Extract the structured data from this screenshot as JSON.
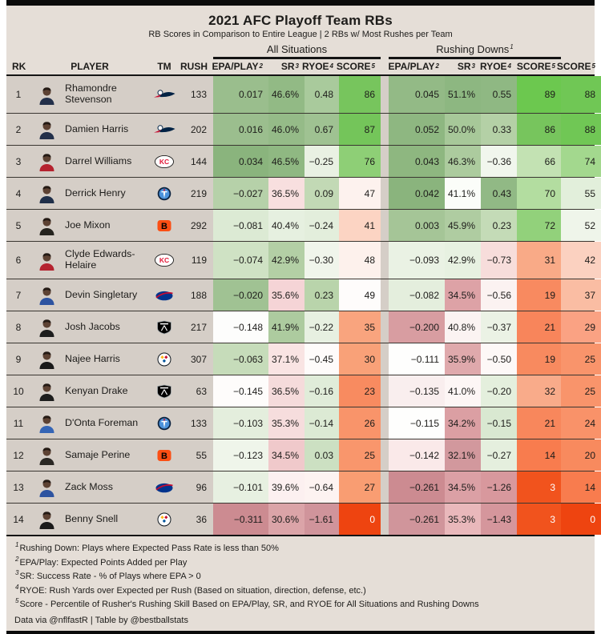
{
  "title": "2021 AFC Playoff Team RBs",
  "subtitle": "RB Scores in Comparison to Entire League | 2 RBs w/ Most Rushes per Team",
  "groups": {
    "all": "All Situations",
    "rushing": "Rushing Downs",
    "rushing_sup": "1"
  },
  "columns": {
    "rk": "RK",
    "player": "PLAYER",
    "tm": "TM",
    "rush": "RUSH",
    "epa": {
      "label": "EPA/PLAY",
      "sup": "2"
    },
    "sr": {
      "label": "SR",
      "sup": "3"
    },
    "ryoe": {
      "label": "RYOE",
      "sup": "4"
    },
    "score": {
      "label": "SCORE",
      "sup": "5"
    }
  },
  "colors": {
    "panel_bg": "#e5ded7",
    "row_left_bg": "#d5cec7",
    "border": "#0b0b0b",
    "score_best_green": "#6cc84f",
    "score_worst_red": "#ee4410"
  },
  "teams": {
    "NE": {
      "name": "New England Patriots",
      "primary": "#002244",
      "secondary": "#c60c30",
      "tertiary": "#ffffff"
    },
    "KC": {
      "name": "Kansas City Chiefs",
      "primary": "#e31837",
      "secondary": "#ffb81c",
      "tertiary": "#ffffff"
    },
    "TEN": {
      "name": "Tennessee Titans",
      "primary": "#0c2340",
      "secondary": "#4b92db",
      "tertiary": "#c8102e"
    },
    "CIN": {
      "name": "Cincinnati Bengals",
      "primary": "#fb4f14",
      "secondary": "#000000",
      "tertiary": "#ffffff"
    },
    "BUF": {
      "name": "Buffalo Bills",
      "primary": "#00338d",
      "secondary": "#c60c30",
      "tertiary": "#ffffff"
    },
    "LV": {
      "name": "Las Vegas Raiders",
      "primary": "#000000",
      "secondary": "#a5acaf",
      "tertiary": "#ffffff"
    },
    "PIT": {
      "name": "Pittsburgh Steelers",
      "primary": "#101820",
      "secondary": "#ffb612",
      "tertiary": "#c60c30",
      "quaternary": "#00539b"
    }
  },
  "rows": [
    {
      "rk": "1",
      "name": "Rhamondre Stevenson",
      "team": "NE",
      "jersey": "#23304a",
      "rush": "133",
      "tall": true,
      "cells": [
        {
          "v": "0.017",
          "bg": "#9abe8d"
        },
        {
          "v": "46.6%",
          "bg": "#92ba85"
        },
        {
          "v": "0.48",
          "bg": "#a9ca9c"
        },
        {
          "v": "86",
          "bg": "#77c55d"
        },
        {
          "v": "0.045",
          "bg": "#93ba86"
        },
        {
          "v": "51.1%",
          "bg": "#8db781"
        },
        {
          "v": "0.55",
          "bg": "#8fb883"
        },
        {
          "v": "89",
          "bg": "#6cc84f"
        },
        {
          "v": "88",
          "bg": "#70c755"
        }
      ]
    },
    {
      "rk": "2",
      "name": "Damien Harris",
      "team": "NE",
      "jersey": "#23304a",
      "rush": "202",
      "tall": false,
      "cells": [
        {
          "v": "0.016",
          "bg": "#9bbe8e"
        },
        {
          "v": "46.0%",
          "bg": "#95bb88"
        },
        {
          "v": "0.67",
          "bg": "#9fc292"
        },
        {
          "v": "87",
          "bg": "#74c55a"
        },
        {
          "v": "0.052",
          "bg": "#8eb781"
        },
        {
          "v": "50.0%",
          "bg": "#a7c899"
        },
        {
          "v": "0.33",
          "bg": "#b4d0a6"
        },
        {
          "v": "86",
          "bg": "#77c55d"
        },
        {
          "v": "88",
          "bg": "#70c755"
        }
      ]
    },
    {
      "rk": "3",
      "name": "Darrel Williams",
      "team": "KC",
      "jersey": "#b5232f",
      "rush": "144",
      "tall": false,
      "cells": [
        {
          "v": "0.034",
          "bg": "#8ab47d"
        },
        {
          "v": "46.5%",
          "bg": "#8fb882"
        },
        {
          "v": "−0.25",
          "bg": "#e9f1e3"
        },
        {
          "v": "76",
          "bg": "#8ecf76"
        },
        {
          "v": "0.043",
          "bg": "#8eb780"
        },
        {
          "v": "46.3%",
          "bg": "#accb9e"
        },
        {
          "v": "−0.36",
          "bg": "#f1f6ed"
        },
        {
          "v": "66",
          "bg": "#c3e2b3"
        },
        {
          "v": "74",
          "bg": "#a3d88e"
        }
      ]
    },
    {
      "rk": "4",
      "name": "Derrick Henry",
      "team": "TEN",
      "jersey": "#20304a",
      "rush": "219",
      "tall": false,
      "cells": [
        {
          "v": "−0.027",
          "bg": "#b6d1a9"
        },
        {
          "v": "36.5%",
          "bg": "#f8dfdf"
        },
        {
          "v": "0.09",
          "bg": "#c2d9b5"
        },
        {
          "v": "47",
          "bg": "#fdf2ee"
        },
        {
          "v": "0.042",
          "bg": "#8ab47d"
        },
        {
          "v": "41.1%",
          "bg": "#fbfdf9"
        },
        {
          "v": "0.43",
          "bg": "#91b985"
        },
        {
          "v": "70",
          "bg": "#b3dda0"
        },
        {
          "v": "55",
          "bg": "#e2efdb"
        }
      ]
    },
    {
      "rk": "5",
      "name": "Joe Mixon",
      "team": "CIN",
      "jersey": "#26241f",
      "rush": "292",
      "tall": false,
      "cells": [
        {
          "v": "−0.081",
          "bg": "#dcead4"
        },
        {
          "v": "40.4%",
          "bg": "#e6f0e0"
        },
        {
          "v": "−0.24",
          "bg": "#e3eedc"
        },
        {
          "v": "41",
          "bg": "#fcd4c3"
        },
        {
          "v": "0.003",
          "bg": "#a5c597"
        },
        {
          "v": "45.9%",
          "bg": "#afcca1"
        },
        {
          "v": "0.23",
          "bg": "#c4dbb7"
        },
        {
          "v": "72",
          "bg": "#92d17b"
        },
        {
          "v": "52",
          "bg": "#eff5ea"
        }
      ]
    },
    {
      "rk": "6",
      "name": "Clyde Edwards-Helaire",
      "team": "KC",
      "jersey": "#b5232f",
      "rush": "119",
      "tall": true,
      "cells": [
        {
          "v": "−0.074",
          "bg": "#cfe2c4"
        },
        {
          "v": "42.9%",
          "bg": "#b3cfa5"
        },
        {
          "v": "−0.30",
          "bg": "#f0f5eb"
        },
        {
          "v": "48",
          "bg": "#fdf1ec"
        },
        {
          "v": "−0.093",
          "bg": "#eaf2e4"
        },
        {
          "v": "42.9%",
          "bg": "#e7f1e1"
        },
        {
          "v": "−0.73",
          "bg": "#f7dddb"
        },
        {
          "v": "31",
          "bg": "#f9aa87"
        },
        {
          "v": "42",
          "bg": "#fbd1c0"
        }
      ]
    },
    {
      "rk": "7",
      "name": "Devin Singletary",
      "team": "BUF",
      "jersey": "#2d53a0",
      "rush": "188",
      "tall": false,
      "cells": [
        {
          "v": "−0.020",
          "bg": "#a0c293"
        },
        {
          "v": "35.6%",
          "bg": "#f5d4d6"
        },
        {
          "v": "0.23",
          "bg": "#b9d4ab"
        },
        {
          "v": "49",
          "bg": "#fefcfb"
        },
        {
          "v": "−0.082",
          "bg": "#e4eedd"
        },
        {
          "v": "34.5%",
          "bg": "#dda2a6"
        },
        {
          "v": "−0.56",
          "bg": "#fbf2f1"
        },
        {
          "v": "19",
          "bg": "#f88a60"
        },
        {
          "v": "37",
          "bg": "#fabda3"
        }
      ]
    },
    {
      "rk": "8",
      "name": "Josh Jacobs",
      "team": "LV",
      "jersey": "#1d1d1d",
      "rush": "217",
      "tall": false,
      "cells": [
        {
          "v": "−0.148",
          "bg": "#fdfdfc"
        },
        {
          "v": "41.9%",
          "bg": "#adcb9f"
        },
        {
          "v": "−0.22",
          "bg": "#e7f0e1"
        },
        {
          "v": "35",
          "bg": "#f9a47e"
        },
        {
          "v": "−0.200",
          "bg": "#d89da1"
        },
        {
          "v": "40.8%",
          "bg": "#fbf3f2"
        },
        {
          "v": "−0.37",
          "bg": "#ebf2e5"
        },
        {
          "v": "21",
          "bg": "#f8855b"
        },
        {
          "v": "29",
          "bg": "#faa283"
        }
      ]
    },
    {
      "rk": "9",
      "name": "Najee Harris",
      "team": "PIT",
      "jersey": "#1a1a1a",
      "rush": "307",
      "tall": false,
      "cells": [
        {
          "v": "−0.063",
          "bg": "#c6dcba"
        },
        {
          "v": "37.1%",
          "bg": "#f9e4e3"
        },
        {
          "v": "−0.45",
          "bg": "#fefbfa"
        },
        {
          "v": "30",
          "bg": "#f9a178"
        },
        {
          "v": "−0.111",
          "bg": "#fefefd"
        },
        {
          "v": "35.9%",
          "bg": "#dfa9ac"
        },
        {
          "v": "−0.50",
          "bg": "#fdf8f7"
        },
        {
          "v": "19",
          "bg": "#f88a5f"
        },
        {
          "v": "25",
          "bg": "#f9946b"
        }
      ]
    },
    {
      "rk": "10",
      "name": "Kenyan Drake",
      "team": "LV",
      "jersey": "#1d1d1d",
      "rush": "63",
      "tall": false,
      "cells": [
        {
          "v": "−0.145",
          "bg": "#fefcfb"
        },
        {
          "v": "36.5%",
          "bg": "#f5dbdb"
        },
        {
          "v": "−0.16",
          "bg": "#e0ecd9"
        },
        {
          "v": "23",
          "bg": "#f88b60"
        },
        {
          "v": "−0.135",
          "bg": "#f9eeee"
        },
        {
          "v": "41.0%",
          "bg": "#fdf6f5"
        },
        {
          "v": "−0.20",
          "bg": "#e4efdd"
        },
        {
          "v": "32",
          "bg": "#f9ab8a"
        },
        {
          "v": "25",
          "bg": "#f9946b"
        }
      ]
    },
    {
      "rk": "11",
      "name": "D'Onta Foreman",
      "team": "TEN",
      "jersey": "#3565b5",
      "rush": "133",
      "tall": false,
      "cells": [
        {
          "v": "−0.103",
          "bg": "#e4eedd"
        },
        {
          "v": "35.3%",
          "bg": "#f6dddd"
        },
        {
          "v": "−0.14",
          "bg": "#dcead4"
        },
        {
          "v": "26",
          "bg": "#f9946a"
        },
        {
          "v": "−0.115",
          "bg": "#fefefd"
        },
        {
          "v": "34.2%",
          "bg": "#db9fa3"
        },
        {
          "v": "−0.15",
          "bg": "#d9e8d1"
        },
        {
          "v": "21",
          "bg": "#f8875c"
        },
        {
          "v": "24",
          "bg": "#f99269"
        }
      ]
    },
    {
      "rk": "12",
      "name": "Samaje Perine",
      "team": "CIN",
      "jersey": "#2a2824",
      "rush": "55",
      "tall": false,
      "cells": [
        {
          "v": "−0.123",
          "bg": "#eff5ea"
        },
        {
          "v": "34.5%",
          "bg": "#f0c9cb"
        },
        {
          "v": "0.03",
          "bg": "#cce0c2"
        },
        {
          "v": "25",
          "bg": "#f9966c"
        },
        {
          "v": "−0.142",
          "bg": "#fae9e9"
        },
        {
          "v": "32.1%",
          "bg": "#d2989d"
        },
        {
          "v": "−0.27",
          "bg": "#e5efde"
        },
        {
          "v": "14",
          "bg": "#f87c4e"
        },
        {
          "v": "20",
          "bg": "#f88a5e"
        }
      ]
    },
    {
      "rk": "13",
      "name": "Zack Moss",
      "team": "BUF",
      "jersey": "#2d53a0",
      "rush": "96",
      "tall": false,
      "cells": [
        {
          "v": "−0.101",
          "bg": "#e7f0e1"
        },
        {
          "v": "39.6%",
          "bg": "#fcf0f0"
        },
        {
          "v": "−0.64",
          "bg": "#fdf3f1"
        },
        {
          "v": "27",
          "bg": "#f99d72"
        },
        {
          "v": "−0.261",
          "bg": "#cc8b91"
        },
        {
          "v": "34.5%",
          "bg": "#dba0a5"
        },
        {
          "v": "−1.26",
          "bg": "#d8989d"
        },
        {
          "v": "3",
          "bg": "#f1531d",
          "fg": "#ffffff"
        },
        {
          "v": "14",
          "bg": "#f87c4e"
        }
      ]
    },
    {
      "rk": "14",
      "name": "Benny Snell",
      "team": "PIT",
      "jersey": "#1a1a1a",
      "rush": "36",
      "tall": false,
      "cells": [
        {
          "v": "−0.311",
          "bg": "#cc8b91"
        },
        {
          "v": "30.6%",
          "bg": "#dba4a8"
        },
        {
          "v": "−1.61",
          "bg": "#d0949b"
        },
        {
          "v": "0",
          "bg": "#ee4410",
          "fg": "#ffffff"
        },
        {
          "v": "−0.261",
          "bg": "#d0959b"
        },
        {
          "v": "35.3%",
          "bg": "#e9b8bb"
        },
        {
          "v": "−1.43",
          "bg": "#d5969c"
        },
        {
          "v": "3",
          "bg": "#f1531d",
          "fg": "#ffffff"
        },
        {
          "v": "0",
          "bg": "#ee4410",
          "fg": "#ffffff"
        }
      ]
    }
  ],
  "footnotes": [
    {
      "sup": "1",
      "text": "Rushing Down: Plays where Expected Pass Rate is less than 50%"
    },
    {
      "sup": "2",
      "text": "EPA/Play: Expected Points Added per Play"
    },
    {
      "sup": "3",
      "text": "SR: Success Rate - % of Plays where EPA > 0"
    },
    {
      "sup": "4",
      "text": "RYOE: Rush Yards over Expected per Rush (Based on situation, direction, defense, etc.)"
    },
    {
      "sup": "5",
      "text": "Score - Percentile of Rusher's Rushing Skill Based on EPA/Play, SR, and RYOE for All Situations and Rushing Downs"
    }
  ],
  "credit": "Data via @nflfastR | Table by @bestballstats",
  "chart_data": {
    "type": "table",
    "title": "2021 AFC Playoff Team RBs",
    "subtitle": "RB Scores in Comparison to Entire League | 2 RBs w/ Most Rushes per Team",
    "column_groups": [
      "All Situations",
      "Rushing Downs"
    ],
    "columns": [
      "RK",
      "PLAYER",
      "TM",
      "RUSH",
      "EPA/PLAY (All)",
      "SR (All)",
      "RYOE (All)",
      "SCORE (All)",
      "EPA/PLAY (Rushing Downs)",
      "SR (Rushing Downs)",
      "RYOE (Rushing Downs)",
      "SCORE (Rushing Downs)",
      "SCORE (Overall)"
    ],
    "rows": [
      [
        1,
        "Rhamondre Stevenson",
        "NE",
        133,
        0.017,
        "46.6%",
        0.48,
        86,
        0.045,
        "51.1%",
        0.55,
        89,
        88
      ],
      [
        2,
        "Damien Harris",
        "NE",
        202,
        0.016,
        "46.0%",
        0.67,
        87,
        0.052,
        "50.0%",
        0.33,
        86,
        88
      ],
      [
        3,
        "Darrel Williams",
        "KC",
        144,
        0.034,
        "46.5%",
        -0.25,
        76,
        0.043,
        "46.3%",
        -0.36,
        66,
        74
      ],
      [
        4,
        "Derrick Henry",
        "TEN",
        219,
        -0.027,
        "36.5%",
        0.09,
        47,
        0.042,
        "41.1%",
        0.43,
        70,
        55
      ],
      [
        5,
        "Joe Mixon",
        "CIN",
        292,
        -0.081,
        "40.4%",
        -0.24,
        41,
        0.003,
        "45.9%",
        0.23,
        72,
        52
      ],
      [
        6,
        "Clyde Edwards-Helaire",
        "KC",
        119,
        -0.074,
        "42.9%",
        -0.3,
        48,
        -0.093,
        "42.9%",
        -0.73,
        31,
        42
      ],
      [
        7,
        "Devin Singletary",
        "BUF",
        188,
        -0.02,
        "35.6%",
        0.23,
        49,
        -0.082,
        "34.5%",
        -0.56,
        19,
        37
      ],
      [
        8,
        "Josh Jacobs",
        "LV",
        217,
        -0.148,
        "41.9%",
        -0.22,
        35,
        -0.2,
        "40.8%",
        -0.37,
        21,
        29
      ],
      [
        9,
        "Najee Harris",
        "PIT",
        307,
        -0.063,
        "37.1%",
        -0.45,
        30,
        -0.111,
        "35.9%",
        -0.5,
        19,
        25
      ],
      [
        10,
        "Kenyan Drake",
        "LV",
        63,
        -0.145,
        "36.5%",
        -0.16,
        23,
        -0.135,
        "41.0%",
        -0.2,
        32,
        25
      ],
      [
        11,
        "D'Onta Foreman",
        "TEN",
        133,
        -0.103,
        "35.3%",
        -0.14,
        26,
        -0.115,
        "34.2%",
        -0.15,
        21,
        24
      ],
      [
        12,
        "Samaje Perine",
        "CIN",
        55,
        -0.123,
        "34.5%",
        0.03,
        25,
        -0.142,
        "32.1%",
        -0.27,
        14,
        20
      ],
      [
        13,
        "Zack Moss",
        "BUF",
        96,
        -0.101,
        "39.6%",
        -0.64,
        27,
        -0.261,
        "34.5%",
        -1.26,
        3,
        14
      ],
      [
        14,
        "Benny Snell",
        "PIT",
        36,
        -0.311,
        "30.6%",
        -1.61,
        0,
        -0.261,
        "35.3%",
        -1.43,
        3,
        0
      ]
    ]
  }
}
